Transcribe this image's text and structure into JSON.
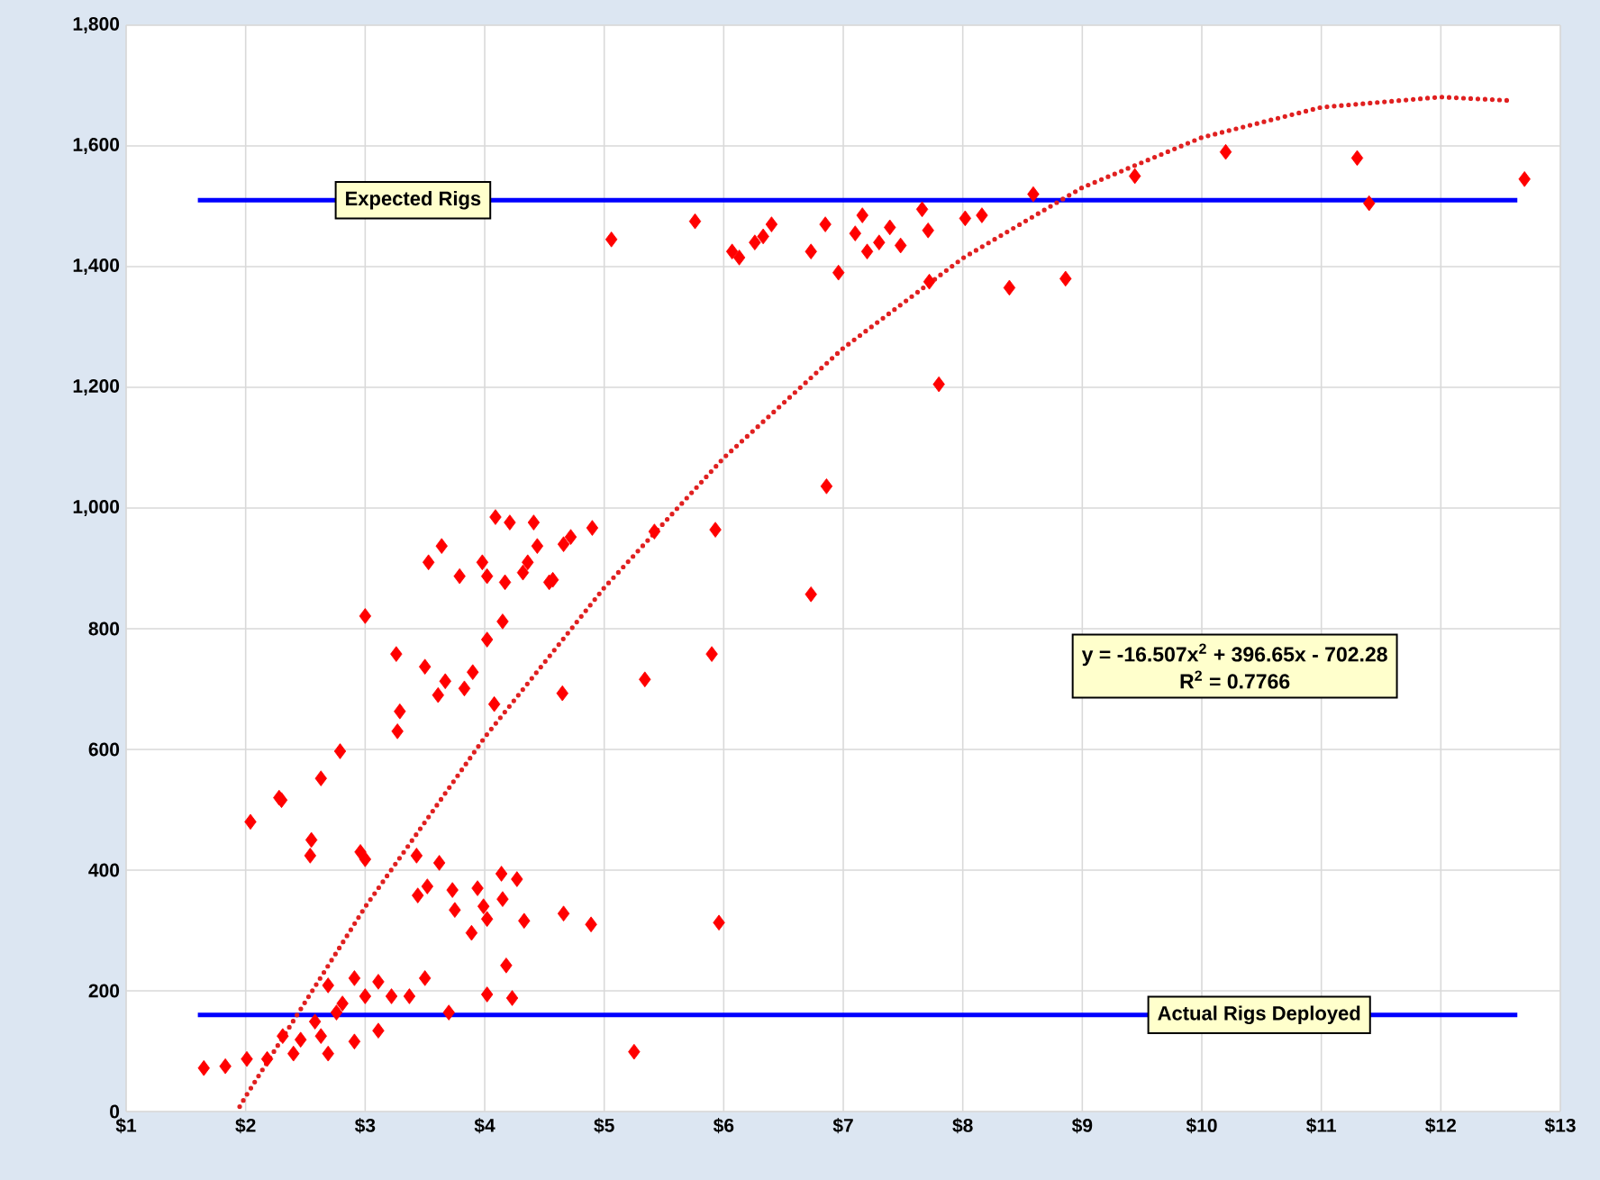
{
  "chart_data": {
    "type": "scatter",
    "xlim": [
      1,
      13
    ],
    "xticks": [
      {
        "value": 1,
        "label": "$1"
      },
      {
        "value": 2,
        "label": "$2"
      },
      {
        "value": 3,
        "label": "$3"
      },
      {
        "value": 4,
        "label": "$4"
      },
      {
        "value": 5,
        "label": "$5"
      },
      {
        "value": 6,
        "label": "$6"
      },
      {
        "value": 7,
        "label": "$7"
      },
      {
        "value": 8,
        "label": "$8"
      },
      {
        "value": 9,
        "label": "$9"
      },
      {
        "value": 10,
        "label": "$10"
      },
      {
        "value": 11,
        "label": "$11"
      },
      {
        "value": 12,
        "label": "$12"
      },
      {
        "value": 13,
        "label": "$13"
      }
    ],
    "ylim": [
      0,
      1800
    ],
    "yticks": [
      0,
      200,
      400,
      600,
      800,
      {
        "value": 1000,
        "label": "1,000"
      },
      {
        "value": 1200,
        "label": "1,200"
      },
      {
        "value": 1400,
        "label": "1,400"
      },
      {
        "value": 1600,
        "label": "1,600"
      },
      {
        "value": 1800,
        "label": "1,800"
      }
    ],
    "grid": true,
    "series": [
      {
        "color": "#ff0000",
        "marker": "diamond",
        "x": [
          5.06,
          5.76,
          6.07,
          6.13,
          6.26,
          6.33,
          6.4,
          6.73,
          6.85,
          6.96,
          7.1,
          7.16,
          7.2,
          7.3,
          7.39,
          7.48,
          7.66,
          7.71,
          7.72,
          7.8,
          8.02,
          8.16,
          8.39,
          8.59,
          8.86,
          9.44,
          10.2,
          11.3,
          11.4,
          12.7,
          6.86,
          6.73,
          5.93,
          5.42,
          5.9,
          5.34,
          4.65,
          4.9,
          4.66,
          4.57,
          4.66,
          4.89,
          5.96,
          5.25,
          4.09,
          4.21,
          4.41,
          4.44,
          3.64,
          3.53,
          3.79,
          3.98,
          4.02,
          4.17,
          4.32,
          4.36,
          4.54,
          4.72,
          3.0,
          4.15,
          4.02,
          3.26,
          3.5,
          3.67,
          3.9,
          3.61,
          3.83,
          4.08,
          3.29,
          3.27,
          2.79,
          2.63,
          2.28,
          2.04,
          2.3,
          2.55,
          2.54,
          2.96,
          3.0,
          3.43,
          3.62,
          3.44,
          3.52,
          3.73,
          3.75,
          3.94,
          3.99,
          3.89,
          4.02,
          4.14,
          4.27,
          4.15,
          4.33,
          4.18,
          4.02,
          4.23,
          3.7,
          3.5,
          3.37,
          2.69,
          2.91,
          3.11,
          2.81,
          3.0,
          3.22,
          3.11,
          2.91,
          2.69,
          2.58,
          2.31,
          2.4,
          2.18,
          2.01,
          1.83,
          1.65,
          2.46,
          2.76,
          2.63
        ],
        "values": [
          1445,
          1475,
          1425,
          1415,
          1440,
          1450,
          1470,
          1425,
          1470,
          1390,
          1455,
          1485,
          1425,
          1440,
          1465,
          1435,
          1495,
          1460,
          1375,
          1205,
          1480,
          1485,
          1365,
          1520,
          1380,
          1550,
          1590,
          1580,
          1505,
          1545,
          1036,
          857,
          964,
          961,
          758,
          716,
          693,
          967,
          940,
          881,
          328,
          310,
          313,
          99,
          985,
          976,
          976,
          937,
          937,
          910,
          887,
          910,
          887,
          877,
          893,
          910,
          877,
          952,
          821,
          812,
          782,
          758,
          737,
          713,
          728,
          690,
          701,
          675,
          663,
          630,
          597,
          552,
          520,
          480,
          516,
          450,
          424,
          430,
          418,
          424,
          412,
          358,
          373,
          367,
          334,
          370,
          340,
          296,
          319,
          394,
          385,
          352,
          316,
          242,
          194,
          188,
          164,
          221,
          191,
          209,
          221,
          215,
          179,
          191,
          191,
          134,
          116,
          96,
          149,
          125,
          96,
          87,
          87,
          75,
          72,
          119,
          164,
          125
        ]
      },
      {
        "type": "line",
        "color": "#e02020",
        "marker": "none",
        "line_style": "dotted",
        "x": [
          1.95,
          2,
          3,
          4,
          5,
          6,
          7,
          8,
          9,
          10,
          11,
          12,
          12.6
        ],
        "values": [
          8,
          25,
          339,
          620,
          868,
          1083,
          1265,
          1414,
          1531,
          1614,
          1664,
          1681,
          1675
        ]
      }
    ],
    "ref_lines": [
      {
        "axis": "y",
        "value": 1510,
        "label": "Expected Rigs",
        "color": "#0000ff"
      },
      {
        "axis": "y",
        "value": 160,
        "label": "Actual Rigs Deployed",
        "color": "#0000ff"
      }
    ],
    "annotations": [
      "y = -16.507x$^{2}$ + 396.65x - 702.28",
      "R$^{2}$ = 0.7766"
    ]
  }
}
